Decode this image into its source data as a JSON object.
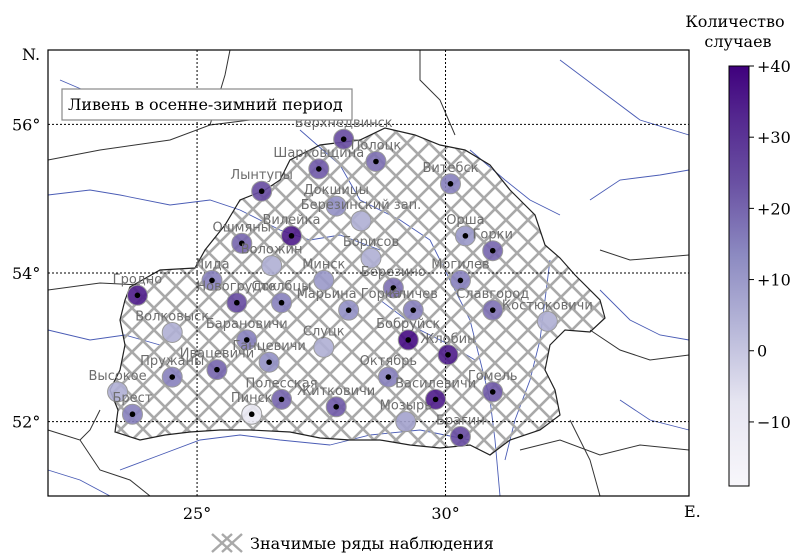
{
  "map": {
    "title": "Ливень в осенне-зимний период",
    "lat_axis_label": "N.",
    "lon_axis_label": "E.",
    "lat_ticks": [
      "56°",
      "54°",
      "52°"
    ],
    "lon_ticks": [
      "25°",
      "30°"
    ],
    "extent": {
      "lon_min": 22.0,
      "lon_max": 34.9,
      "lat_min": 51.0,
      "lat_max": 57.0
    },
    "colorbar": {
      "title_line1": "Количество",
      "title_line2": "случаев",
      "ticks": [
        "+40",
        "+30",
        "+20",
        "+10",
        "0",
        "−10"
      ],
      "tick_values": [
        40,
        30,
        20,
        10,
        0,
        -10
      ],
      "range": [
        -19,
        40
      ],
      "low_color": "#f8f7fb",
      "high_color": "#3f007d"
    },
    "legend": {
      "label": "Значимые ряды наблюдения"
    },
    "stations": [
      {
        "name": "Верхнедвинск",
        "lon": 27.95,
        "lat": 55.8,
        "value": 25,
        "sig": true
      },
      {
        "name": "Полоцк",
        "lon": 28.6,
        "lat": 55.5,
        "value": 18,
        "sig": true
      },
      {
        "name": "Шарковщина",
        "lon": 27.45,
        "lat": 55.4,
        "value": 22,
        "sig": true
      },
      {
        "name": "Витебск",
        "lon": 30.1,
        "lat": 55.2,
        "value": 15,
        "sig": true
      },
      {
        "name": "Лынтупы",
        "lon": 26.3,
        "lat": 55.1,
        "value": 25,
        "sig": true
      },
      {
        "name": "Докшицы",
        "lon": 27.8,
        "lat": 54.9,
        "value": 12,
        "sig": false
      },
      {
        "name": "Березинский зап.",
        "lon": 28.3,
        "lat": 54.7,
        "value": 5,
        "sig": false
      },
      {
        "name": "Вилейка",
        "lon": 26.9,
        "lat": 54.5,
        "value": 35,
        "sig": true
      },
      {
        "name": "Орша",
        "lon": 30.4,
        "lat": 54.5,
        "value": 10,
        "sig": true
      },
      {
        "name": "Ошмяны",
        "lon": 25.9,
        "lat": 54.4,
        "value": 20,
        "sig": true
      },
      {
        "name": "Горки",
        "lon": 30.95,
        "lat": 54.3,
        "value": 20,
        "sig": true
      },
      {
        "name": "Воложин",
        "lon": 26.5,
        "lat": 54.1,
        "value": 5,
        "sig": false
      },
      {
        "name": "Борисов",
        "lon": 28.5,
        "lat": 54.2,
        "value": 5,
        "sig": false
      },
      {
        "name": "Лида",
        "lon": 25.3,
        "lat": 53.9,
        "value": 15,
        "sig": true
      },
      {
        "name": "Могилев",
        "lon": 30.3,
        "lat": 53.9,
        "value": 15,
        "sig": true
      },
      {
        "name": "Минск",
        "lon": 27.55,
        "lat": 53.9,
        "value": 10,
        "sig": false
      },
      {
        "name": "Березино",
        "lon": 28.95,
        "lat": 53.8,
        "value": 18,
        "sig": true
      },
      {
        "name": "Гродно",
        "lon": 23.8,
        "lat": 53.7,
        "value": 35,
        "sig": true
      },
      {
        "name": "Новогрудок",
        "lon": 25.8,
        "lat": 53.6,
        "value": 25,
        "sig": true
      },
      {
        "name": "Столбцы",
        "lon": 26.7,
        "lat": 53.6,
        "value": 15,
        "sig": true
      },
      {
        "name": "Марьина Горка",
        "lon": 28.05,
        "lat": 53.5,
        "value": 12,
        "sig": true
      },
      {
        "name": "Кличев",
        "lon": 29.35,
        "lat": 53.5,
        "value": 15,
        "sig": true
      },
      {
        "name": "Славгород",
        "lon": 30.95,
        "lat": 53.5,
        "value": 18,
        "sig": true
      },
      {
        "name": "Костюковичи",
        "lon": 32.05,
        "lat": 53.35,
        "value": 5,
        "sig": false
      },
      {
        "name": "Волковыск",
        "lon": 24.5,
        "lat": 53.2,
        "value": 5,
        "sig": false
      },
      {
        "name": "Барановичи",
        "lon": 26.0,
        "lat": 53.1,
        "value": 15,
        "sig": true
      },
      {
        "name": "Бобруйск",
        "lon": 29.25,
        "lat": 53.1,
        "value": 38,
        "sig": true
      },
      {
        "name": "Ганцевичи",
        "lon": 26.45,
        "lat": 52.8,
        "value": 12,
        "sig": true
      },
      {
        "name": "Слуцк",
        "lon": 27.55,
        "lat": 53.0,
        "value": 5,
        "sig": false
      },
      {
        "name": "Жлобин",
        "lon": 30.05,
        "lat": 52.9,
        "value": 35,
        "sig": true
      },
      {
        "name": "Ивацевичи",
        "lon": 25.4,
        "lat": 52.7,
        "value": 20,
        "sig": true
      },
      {
        "name": "Октябрь",
        "lon": 28.85,
        "lat": 52.6,
        "value": 15,
        "sig": true
      },
      {
        "name": "Пружаны",
        "lon": 24.5,
        "lat": 52.6,
        "value": 15,
        "sig": true
      },
      {
        "name": "Высокое",
        "lon": 23.4,
        "lat": 52.4,
        "value": 5,
        "sig": false
      },
      {
        "name": "Гомель",
        "lon": 30.95,
        "lat": 52.4,
        "value": 22,
        "sig": true
      },
      {
        "name": "Полесская",
        "lon": 26.7,
        "lat": 52.3,
        "value": 20,
        "sig": true
      },
      {
        "name": "Василевичи",
        "lon": 29.8,
        "lat": 52.3,
        "value": 35,
        "sig": true
      },
      {
        "name": "Житковичи",
        "lon": 27.8,
        "lat": 52.2,
        "value": 22,
        "sig": true
      },
      {
        "name": "Брест",
        "lon": 23.7,
        "lat": 52.1,
        "value": 15,
        "sig": true
      },
      {
        "name": "Пинск",
        "lon": 26.1,
        "lat": 52.1,
        "value": -10,
        "sig": true
      },
      {
        "name": "Мозырь",
        "lon": 29.2,
        "lat": 52.0,
        "value": 8,
        "sig": false
      },
      {
        "name": "Брагин",
        "lon": 30.3,
        "lat": 51.8,
        "value": 25,
        "sig": true
      }
    ]
  }
}
